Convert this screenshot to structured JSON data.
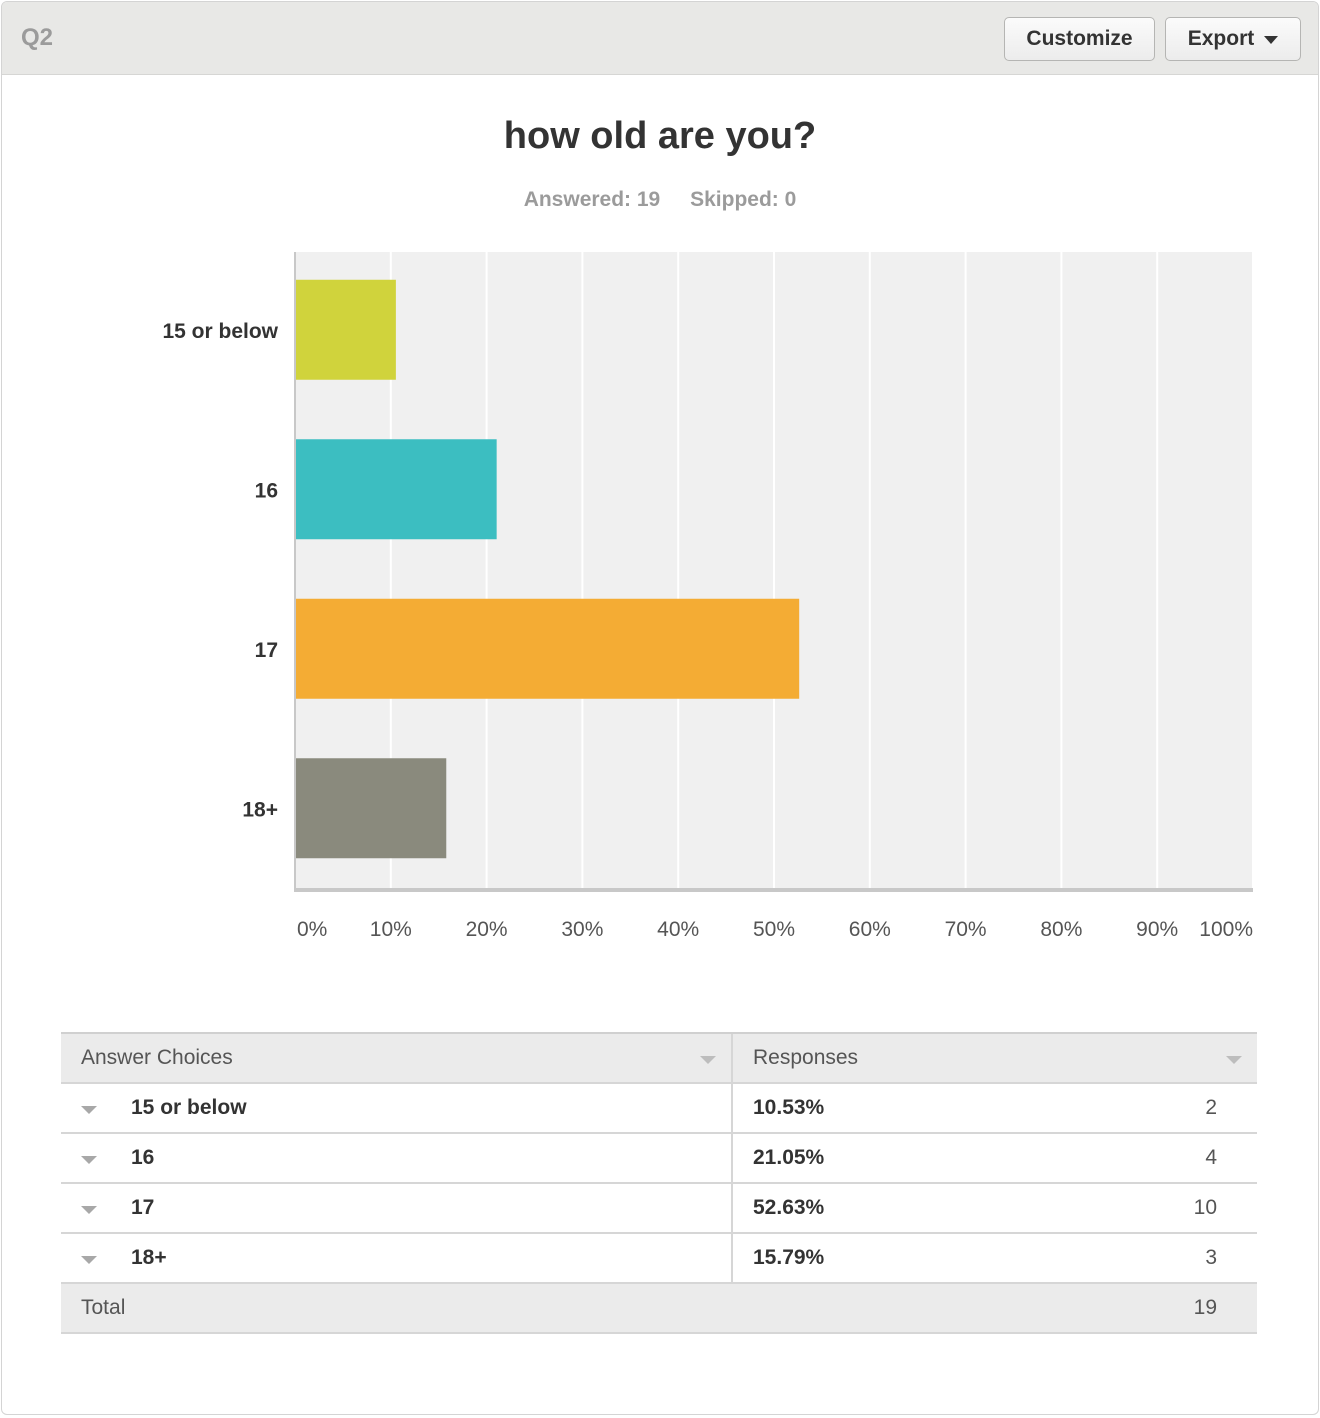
{
  "header": {
    "question_number": "Q2",
    "customize_label": "Customize",
    "export_label": "Export"
  },
  "question": {
    "title": "how old are you?",
    "answered": "Answered: 19",
    "skipped": "Skipped: 0"
  },
  "colors": {
    "series": [
      "#d0d33c",
      "#3cbec1",
      "#f4ac34",
      "#8a8a7d"
    ],
    "plot_bg": "#f0f0f0",
    "gridline": "#ffffff",
    "axis": "#c8c8c8"
  },
  "chart_data": {
    "type": "bar",
    "orientation": "horizontal",
    "categories": [
      "15 or below",
      "16",
      "17",
      "18+"
    ],
    "values": [
      10.53,
      21.05,
      52.63,
      15.79
    ],
    "xlim": [
      0,
      100
    ],
    "x_ticks": [
      "0%",
      "10%",
      "20%",
      "30%",
      "40%",
      "50%",
      "60%",
      "70%",
      "80%",
      "90%",
      "100%"
    ],
    "grid": true
  },
  "table": {
    "headers": {
      "answer_choices": "Answer Choices",
      "responses": "Responses"
    },
    "rows": [
      {
        "choice": "15 or below",
        "percent": "10.53%",
        "count": "2"
      },
      {
        "choice": "16",
        "percent": "21.05%",
        "count": "4"
      },
      {
        "choice": "17",
        "percent": "52.63%",
        "count": "10"
      },
      {
        "choice": "18+",
        "percent": "15.79%",
        "count": "3"
      }
    ],
    "total_label": "Total",
    "total_count": "19"
  }
}
